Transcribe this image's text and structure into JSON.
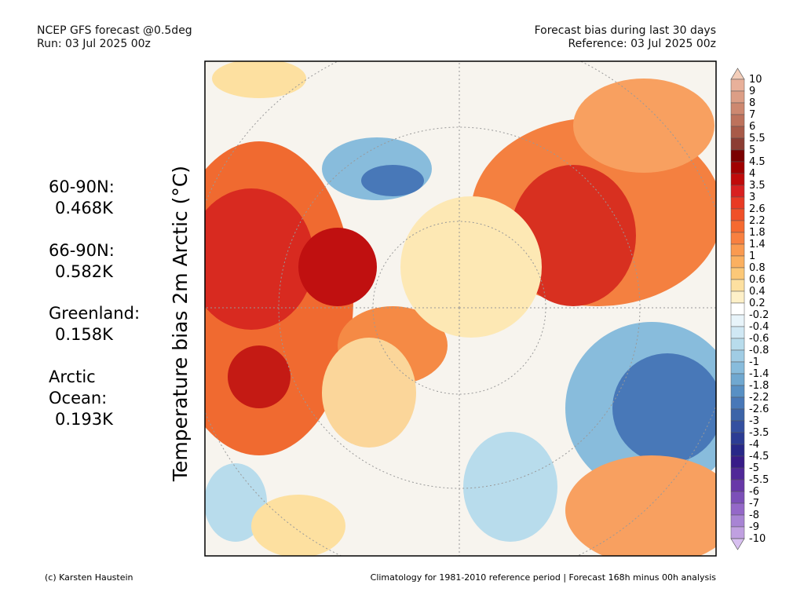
{
  "header": {
    "left": [
      "NCEP GFS forecast @0.5deg",
      "Run: 03 Jul 2025 00z"
    ],
    "right": [
      "Forecast bias during last 30 days",
      "Reference: 03 Jul 2025 00z"
    ]
  },
  "axis_title": "Temperature bias 2m Arctic (°C)",
  "regions": [
    {
      "label": [
        "60-90N:"
      ],
      "value": "0.468K"
    },
    {
      "label": [
        "66-90N:"
      ],
      "value": "0.582K"
    },
    {
      "label": [
        "Greenland:"
      ],
      "value": "0.158K"
    },
    {
      "label": [
        "Arctic",
        "Ocean:"
      ],
      "value": "0.193K"
    }
  ],
  "colorbar": {
    "levels": [
      10,
      9,
      8,
      7,
      6,
      5.5,
      5,
      4.5,
      4,
      3.5,
      3,
      2.6,
      2.2,
      1.8,
      1.4,
      1,
      0.8,
      0.6,
      0.4,
      0.2,
      -0.2,
      -0.4,
      -0.6,
      -0.8,
      -1,
      -1.4,
      -1.8,
      -2.2,
      -2.6,
      -3,
      -3.5,
      -4,
      -4.5,
      -5,
      -5.5,
      -6,
      -7,
      -8,
      -9,
      -10
    ],
    "colors": [
      "#f3cdb9",
      "#e8b09a",
      "#dc9e86",
      "#cd8870",
      "#bd725c",
      "#a85a48",
      "#8c3d33",
      "#7a0000",
      "#a00000",
      "#c00a0a",
      "#d82020",
      "#e83a24",
      "#f05028",
      "#f56a30",
      "#f88040",
      "#fa9a50",
      "#fbb060",
      "#fcc878",
      "#fde0a0",
      "#fef0c8",
      "#ffffff",
      "#e8f4fa",
      "#d0e8f4",
      "#b8dcec",
      "#a0cce4",
      "#88bcdc",
      "#70a8d0",
      "#5890c4",
      "#4878b8",
      "#3c64a8",
      "#3450a0",
      "#2c3c94",
      "#282888",
      "#381c88",
      "#502898",
      "#6838a8",
      "#7c50b8",
      "#9468c8",
      "#a884d4",
      "#c0a0e0",
      "#d8c0f0"
    ]
  },
  "footer": {
    "left": "(c) Karsten Haustein",
    "right": "Climatology for 1981-2010 reference period | Forecast 168h minus 00h analysis"
  }
}
